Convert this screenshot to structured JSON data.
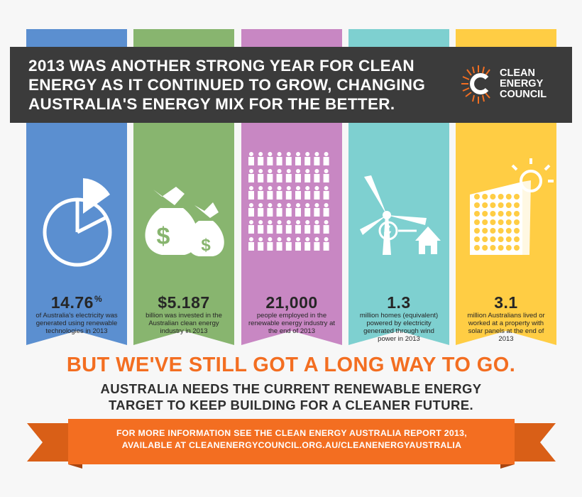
{
  "header": {
    "headline_lines": [
      "2013 WAS ANOTHER STRONG YEAR FOR CLEAN",
      "ENERGY AS IT CONTINUED TO GROW, CHANGING",
      "AUSTRALIA'S ENERGY MIX FOR THE BETTER."
    ],
    "logo_lines": [
      "CLEAN",
      "ENERGY",
      "COUNCIL"
    ]
  },
  "stats": [
    {
      "color": "#5b8fd0",
      "icon": "pie-chart-icon",
      "value": "14.76",
      "unit": "%",
      "desc": "of Australia's electricity was generated using renewable technologies in 2013"
    },
    {
      "color": "#88b56f",
      "icon": "money-bags-icon",
      "value": "$5.187",
      "unit": "",
      "desc": "billion was invested in the Australian clean energy industry in 2013"
    },
    {
      "color": "#c887c3",
      "icon": "people-icon",
      "value": "21,000",
      "unit": "",
      "desc": "people employed in the renewable energy industry at the end of 2013"
    },
    {
      "color": "#7ed0d0",
      "icon": "wind-turbine-icon",
      "value": "1.3",
      "unit": "",
      "desc": "million homes (equivalent) powered by electricity generated through wind power in 2013"
    },
    {
      "color": "#ffcd44",
      "icon": "solar-panel-icon",
      "value": "3.1",
      "unit": "",
      "desc": "million Australians lived or worked at a property with solar panels at the end of 2013"
    }
  ],
  "footer": {
    "tagline": "BUT WE'VE STILL GOT A LONG WAY TO GO.",
    "sub_lines": [
      "AUSTRALIA NEEDS THE CURRENT RENEWABLE ENERGY",
      "TARGET TO KEEP BUILDING FOR A CLEANER FUTURE."
    ],
    "ribbon_lines": [
      "FOR MORE INFORMATION SEE THE CLEAN ENERGY AUSTRALIA REPORT 2013,",
      "AVAILABLE AT CLEANENERGYCOUNCIL.ORG.AU/CLEANENERGYAUSTRALIA"
    ],
    "ribbon_color": "#f36e21"
  }
}
